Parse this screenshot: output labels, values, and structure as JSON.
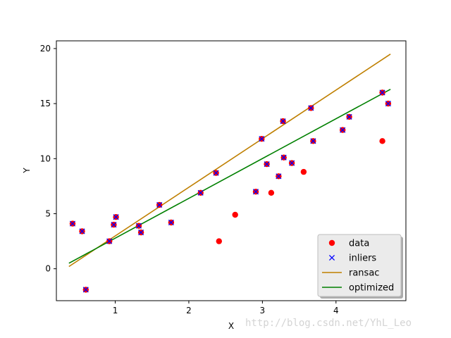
{
  "chart_data": {
    "type": "scatter",
    "xlabel": "X",
    "ylabel": "Y",
    "xlim": [
      0.2,
      4.95
    ],
    "ylim": [
      -2.9,
      20.7
    ],
    "xticks": [
      1,
      2,
      3,
      4
    ],
    "yticks": [
      0,
      5,
      10,
      15,
      20
    ],
    "grid": false,
    "legend_position": "bottom-right",
    "series": [
      {
        "name": "data",
        "kind": "marker-circle",
        "color": "#ff0000",
        "points": [
          [
            0.42,
            4.1
          ],
          [
            0.55,
            3.4
          ],
          [
            0.6,
            -1.9
          ],
          [
            0.92,
            2.5
          ],
          [
            0.98,
            4.0
          ],
          [
            1.01,
            4.7
          ],
          [
            1.32,
            3.9
          ],
          [
            1.35,
            3.3
          ],
          [
            1.6,
            5.8
          ],
          [
            1.76,
            4.2
          ],
          [
            2.16,
            6.9
          ],
          [
            2.37,
            8.7
          ],
          [
            2.41,
            2.5
          ],
          [
            2.63,
            4.9
          ],
          [
            2.91,
            7.0
          ],
          [
            2.99,
            11.8
          ],
          [
            3.06,
            9.5
          ],
          [
            3.12,
            6.9
          ],
          [
            3.22,
            8.4
          ],
          [
            3.28,
            13.4
          ],
          [
            3.29,
            10.1
          ],
          [
            3.4,
            9.6
          ],
          [
            3.56,
            8.8
          ],
          [
            3.66,
            14.6
          ],
          [
            3.69,
            11.6
          ],
          [
            4.09,
            12.6
          ],
          [
            4.18,
            13.8
          ],
          [
            4.63,
            11.6
          ],
          [
            4.63,
            16.0
          ],
          [
            4.71,
            15.0
          ]
        ]
      },
      {
        "name": "inliers",
        "kind": "marker-x",
        "color": "#0000ff",
        "points": [
          [
            0.42,
            4.1
          ],
          [
            0.55,
            3.4
          ],
          [
            0.6,
            -1.9
          ],
          [
            0.92,
            2.5
          ],
          [
            0.98,
            4.0
          ],
          [
            1.01,
            4.7
          ],
          [
            1.32,
            3.9
          ],
          [
            1.35,
            3.3
          ],
          [
            1.6,
            5.8
          ],
          [
            1.76,
            4.2
          ],
          [
            2.16,
            6.9
          ],
          [
            2.37,
            8.7
          ],
          [
            2.91,
            7.0
          ],
          [
            2.99,
            11.8
          ],
          [
            3.06,
            9.5
          ],
          [
            3.22,
            8.4
          ],
          [
            3.28,
            13.4
          ],
          [
            3.29,
            10.1
          ],
          [
            3.4,
            9.6
          ],
          [
            3.66,
            14.6
          ],
          [
            3.69,
            11.6
          ],
          [
            4.09,
            12.6
          ],
          [
            4.18,
            13.8
          ],
          [
            4.63,
            16.0
          ],
          [
            4.71,
            15.0
          ]
        ]
      },
      {
        "name": "ransac",
        "kind": "line",
        "color": "#bf7f00",
        "points": [
          [
            0.37,
            0.2
          ],
          [
            4.74,
            19.5
          ]
        ]
      },
      {
        "name": "optimized",
        "kind": "line",
        "color": "#008000",
        "points": [
          [
            0.37,
            0.5
          ],
          [
            4.74,
            16.3
          ]
        ]
      }
    ]
  },
  "watermark": "http://blog.csdn.net/YhL_Leo"
}
